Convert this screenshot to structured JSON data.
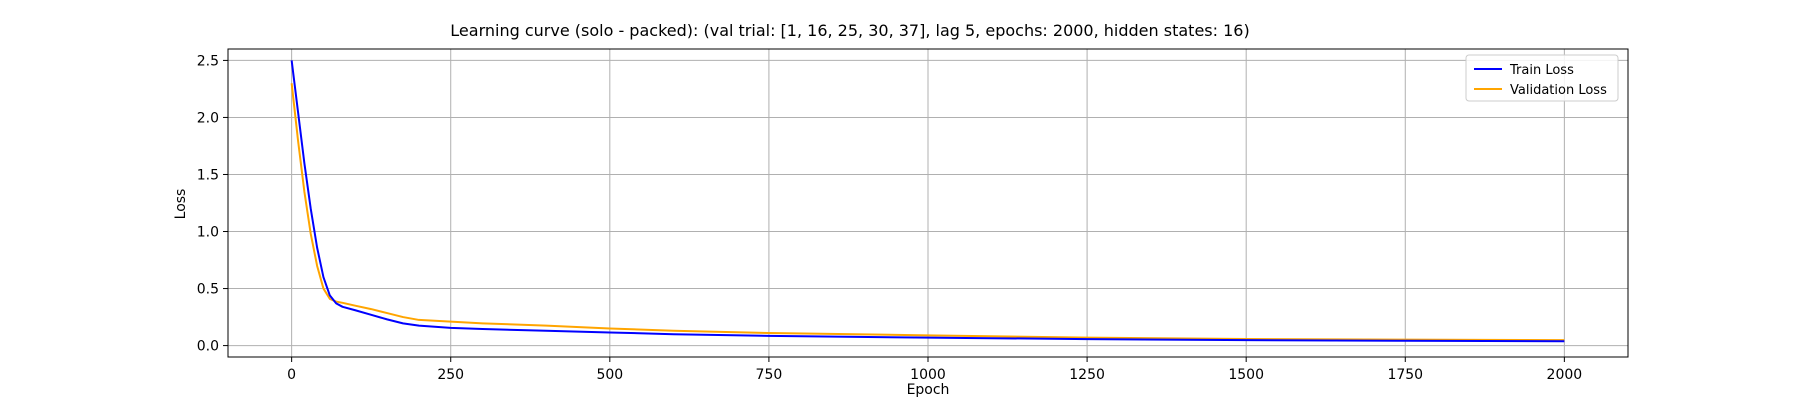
{
  "chart_data": {
    "type": "line",
    "title": "Learning curve (solo - packed): (val trial: [1, 16, 25, 30, 37], lag 5, epochs: 2000, hidden states: 16)",
    "xlabel": "Epoch",
    "ylabel": "Loss",
    "xlim": [
      -100,
      2100
    ],
    "ylim": [
      -0.1,
      2.6
    ],
    "x_ticks": [
      0,
      250,
      500,
      750,
      1000,
      1250,
      1500,
      1750,
      2000
    ],
    "x_tick_labels": [
      "0",
      "250",
      "500",
      "750",
      "1000",
      "1250",
      "1500",
      "1750",
      "2000"
    ],
    "y_ticks": [
      0.0,
      0.5,
      1.0,
      1.5,
      2.0,
      2.5
    ],
    "y_tick_labels": [
      "0.0",
      "0.5",
      "1.0",
      "1.5",
      "2.0",
      "2.5"
    ],
    "grid": true,
    "legend_position": "top-right",
    "series": [
      {
        "name": "Train Loss",
        "color": "#0000ff",
        "x": [
          0,
          10,
          20,
          30,
          40,
          50,
          60,
          70,
          80,
          100,
          125,
          150,
          175,
          200,
          250,
          300,
          400,
          500,
          600,
          750,
          1000,
          1250,
          1500,
          1750,
          2000
        ],
        "y": [
          2.5,
          2.05,
          1.6,
          1.2,
          0.86,
          0.6,
          0.44,
          0.37,
          0.34,
          0.31,
          0.27,
          0.23,
          0.195,
          0.175,
          0.155,
          0.145,
          0.13,
          0.115,
          0.1,
          0.085,
          0.07,
          0.057,
          0.048,
          0.042,
          0.038
        ]
      },
      {
        "name": "Validation Loss",
        "color": "#ffa500",
        "x": [
          0,
          10,
          20,
          30,
          40,
          50,
          60,
          70,
          80,
          100,
          125,
          150,
          175,
          200,
          250,
          300,
          400,
          500,
          600,
          750,
          1000,
          1250,
          1500,
          1750,
          2000
        ],
        "y": [
          2.3,
          1.8,
          1.35,
          0.98,
          0.7,
          0.5,
          0.41,
          0.385,
          0.375,
          0.35,
          0.32,
          0.285,
          0.25,
          0.225,
          0.21,
          0.195,
          0.175,
          0.15,
          0.13,
          0.11,
          0.09,
          0.07,
          0.058,
          0.052,
          0.048
        ]
      }
    ]
  }
}
